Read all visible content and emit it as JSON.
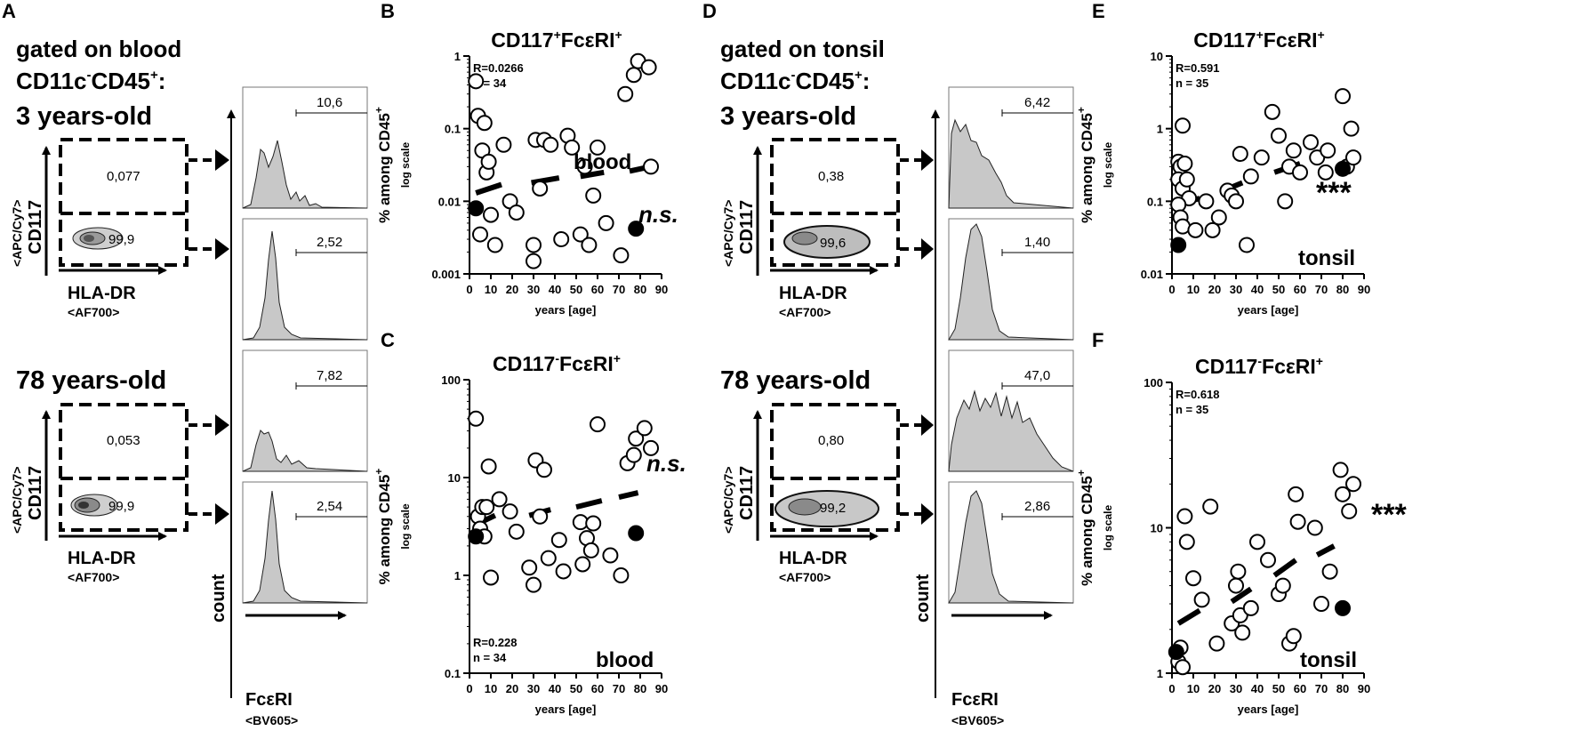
{
  "panels": {
    "A": {
      "letter": "A",
      "gate_line1": "gated on blood",
      "gate_line2_a": "CD11c",
      "gate_line2_sup1": "-",
      "gate_line2_b": "CD45",
      "gate_line2_sup2": "+",
      "gate_line2_c": ":",
      "young_label": "3 years-old",
      "old_label": "78 years-old",
      "young_gates": [
        "0,077",
        "99,9"
      ],
      "old_gates": [
        "0,053",
        "99,9"
      ],
      "hist_values": [
        "10,6",
        "2,52",
        "7,82",
        "2,54"
      ]
    },
    "D": {
      "letter": "D",
      "gate_line1": "gated on tonsil",
      "gate_line2_a": "CD11c",
      "gate_line2_sup1": "-",
      "gate_line2_b": "CD45",
      "gate_line2_sup2": "+",
      "gate_line2_c": ":",
      "young_label": "3 years-old",
      "old_label": "78 years-old",
      "young_gates": [
        "0,38",
        "99,6"
      ],
      "old_gates": [
        "0,80",
        "99,2"
      ],
      "hist_values": [
        "6,42",
        "1,40",
        "47,0",
        "2,86"
      ]
    }
  },
  "flow_labels": {
    "y_marker": "CD117",
    "y_fluor": "<APC/Cy7>",
    "x_marker": "HLA-DR",
    "x_fluor": "<AF700>",
    "count": "count",
    "hist_x_marker": "FcεRI",
    "hist_x_fluor": "<BV605>"
  },
  "chart_data": [
    {
      "panel": "B",
      "type": "scatter",
      "title_a": "CD117",
      "title_sup1": "+",
      "title_b": "FcεRI",
      "title_sup2": "+",
      "ylabel_a": "% among CD45",
      "ylabel_sup": "+",
      "ylabel_sub": "log scale",
      "xlabel": "years [age]",
      "xlim": [
        0,
        90
      ],
      "ylim": [
        0.001,
        1
      ],
      "yscale": "log",
      "y_ticks": [
        0.001,
        0.01,
        0.1,
        1
      ],
      "y_tick_labels": [
        "0.001",
        "0.01",
        "0.1",
        "1"
      ],
      "x_ticks": [
        0,
        10,
        20,
        30,
        40,
        50,
        60,
        70,
        80,
        90
      ],
      "x_tick_labels": [
        "0",
        "10",
        "20",
        "30",
        "40",
        "50",
        "60",
        "70",
        "80",
        "90"
      ],
      "stat_r": "R=0.0266",
      "stat_n": "n = 34",
      "stat_pos": "top-left",
      "tissue": "blood",
      "significance": "n.s.",
      "points": [
        [
          3,
          0.45
        ],
        [
          4,
          0.15
        ],
        [
          6,
          0.05
        ],
        [
          7,
          0.12
        ],
        [
          8,
          0.025
        ],
        [
          9,
          0.035
        ],
        [
          10,
          0.0065
        ],
        [
          5,
          0.0035
        ],
        [
          12,
          0.0025
        ],
        [
          16,
          0.06
        ],
        [
          19,
          0.01
        ],
        [
          22,
          0.007
        ],
        [
          30,
          0.0025
        ],
        [
          30,
          0.0015
        ],
        [
          31,
          0.07
        ],
        [
          33,
          0.015
        ],
        [
          35,
          0.07
        ],
        [
          38,
          0.06
        ],
        [
          43,
          0.003
        ],
        [
          46,
          0.08
        ],
        [
          48,
          0.055
        ],
        [
          52,
          0.0035
        ],
        [
          54,
          0.03
        ],
        [
          56,
          0.0025
        ],
        [
          58,
          0.012
        ],
        [
          60,
          0.055
        ],
        [
          64,
          0.005
        ],
        [
          71,
          0.0018
        ],
        [
          73,
          0.3
        ],
        [
          77,
          0.55
        ],
        [
          79,
          0.85
        ],
        [
          84,
          0.7
        ],
        [
          85,
          0.03
        ]
      ],
      "filled_points": [
        [
          3,
          0.008
        ],
        [
          78,
          0.0042
        ]
      ],
      "trend_segments": [
        [
          [
            3,
            0.013
          ],
          [
            15,
            0.017
          ]
        ],
        [
          [
            29,
            0.018
          ],
          [
            42,
            0.021
          ]
        ],
        [
          [
            52,
            0.022
          ],
          [
            63,
            0.025
          ]
        ],
        [
          [
            75,
            0.026
          ],
          [
            85,
            0.03
          ]
        ]
      ]
    },
    {
      "panel": "C",
      "type": "scatter",
      "title_a": "CD117",
      "title_sup1": "-",
      "title_b": "FcεRI",
      "title_sup2": "+",
      "ylabel_a": "% among CD45",
      "ylabel_sup": "+",
      "ylabel_sub": "log scale",
      "xlabel": "years [age]",
      "xlim": [
        0,
        90
      ],
      "ylim": [
        0.1,
        100
      ],
      "yscale": "log",
      "y_ticks": [
        0.1,
        1,
        10,
        100
      ],
      "y_tick_labels": [
        "0.1",
        "1",
        "10",
        "100"
      ],
      "x_ticks": [
        0,
        10,
        20,
        30,
        40,
        50,
        60,
        70,
        80,
        90
      ],
      "x_tick_labels": [
        "0",
        "10",
        "20",
        "30",
        "40",
        "50",
        "60",
        "70",
        "80",
        "90"
      ],
      "stat_r": "R=0.228",
      "stat_n": "n = 34",
      "stat_pos": "bottom-left",
      "tissue": "blood",
      "significance": "n.s.",
      "points": [
        [
          3,
          40
        ],
        [
          4,
          4
        ],
        [
          5,
          3
        ],
        [
          6,
          5
        ],
        [
          7,
          2.5
        ],
        [
          8,
          5
        ],
        [
          9,
          13
        ],
        [
          10,
          0.95
        ],
        [
          14,
          6
        ],
        [
          19,
          4.5
        ],
        [
          22,
          2.8
        ],
        [
          28,
          1.2
        ],
        [
          30,
          0.8
        ],
        [
          31,
          15
        ],
        [
          33,
          4
        ],
        [
          35,
          12
        ],
        [
          37,
          1.5
        ],
        [
          42,
          2.3
        ],
        [
          44,
          1.1
        ],
        [
          52,
          3.5
        ],
        [
          53,
          1.3
        ],
        [
          55,
          2.4
        ],
        [
          57,
          1.8
        ],
        [
          58,
          3.4
        ],
        [
          60,
          35
        ],
        [
          66,
          1.6
        ],
        [
          71,
          1
        ],
        [
          74,
          14
        ],
        [
          77,
          17
        ],
        [
          78,
          25
        ],
        [
          82,
          32
        ],
        [
          85,
          20
        ]
      ],
      "filled_points": [
        [
          3,
          2.5
        ],
        [
          78,
          2.7
        ]
      ],
      "trend_segments": [
        [
          [
            3,
            3.3
          ],
          [
            12,
            4.1
          ]
        ],
        [
          [
            28,
            4.1
          ],
          [
            38,
            4.7
          ]
        ],
        [
          [
            50,
            5
          ],
          [
            62,
            5.8
          ]
        ],
        [
          [
            70,
            6.3
          ],
          [
            79,
            7
          ]
        ]
      ]
    },
    {
      "panel": "E",
      "type": "scatter",
      "title_a": "CD117",
      "title_sup1": "+",
      "title_b": "FcεRI",
      "title_sup2": "+",
      "ylabel_a": "% among CD45",
      "ylabel_sup": "+",
      "ylabel_sub": "log scale",
      "xlabel": "years [age]",
      "xlim": [
        0,
        90
      ],
      "ylim": [
        0.01,
        10
      ],
      "yscale": "log",
      "y_ticks": [
        0.01,
        0.1,
        1,
        10
      ],
      "y_tick_labels": [
        "0.01",
        "0.1",
        "1",
        "10"
      ],
      "x_ticks": [
        0,
        10,
        20,
        30,
        40,
        50,
        60,
        70,
        80,
        90
      ],
      "x_tick_labels": [
        "0",
        "10",
        "20",
        "30",
        "40",
        "50",
        "60",
        "70",
        "80",
        "90"
      ],
      "stat_r": "R=0.591",
      "stat_n": "n = 35",
      "stat_pos": "top-left",
      "tissue": "tonsil",
      "significance": "***",
      "points": [
        [
          3,
          0.35
        ],
        [
          4,
          0.3
        ],
        [
          5,
          1.1
        ],
        [
          3,
          0.2
        ],
        [
          5,
          0.15
        ],
        [
          6,
          0.33
        ],
        [
          7,
          0.2
        ],
        [
          8,
          0.11
        ],
        [
          3,
          0.09
        ],
        [
          4,
          0.06
        ],
        [
          5,
          0.045
        ],
        [
          11,
          0.04
        ],
        [
          16,
          0.1
        ],
        [
          19,
          0.04
        ],
        [
          22,
          0.06
        ],
        [
          26,
          0.14
        ],
        [
          28,
          0.12
        ],
        [
          30,
          0.1
        ],
        [
          32,
          0.45
        ],
        [
          35,
          0.025
        ],
        [
          37,
          0.22
        ],
        [
          42,
          0.4
        ],
        [
          47,
          1.7
        ],
        [
          50,
          0.8
        ],
        [
          53,
          0.1
        ],
        [
          55,
          0.3
        ],
        [
          57,
          0.5
        ],
        [
          60,
          0.25
        ],
        [
          65,
          0.65
        ],
        [
          68,
          0.4
        ],
        [
          72,
          0.25
        ],
        [
          73,
          0.5
        ],
        [
          80,
          2.8
        ],
        [
          82,
          0.3
        ],
        [
          84,
          1.0
        ],
        [
          85,
          0.4
        ]
      ],
      "filled_points": [
        [
          3,
          0.025
        ],
        [
          80,
          0.28
        ]
      ],
      "trend_segments": [
        [
          [
            3,
            0.09
          ],
          [
            13,
            0.11
          ]
        ],
        [
          [
            24,
            0.14
          ],
          [
            33,
            0.18
          ]
        ],
        [
          [
            48,
            0.25
          ],
          [
            60,
            0.33
          ]
        ],
        [
          [
            69,
            0.4
          ],
          [
            76,
            0.5
          ]
        ]
      ]
    },
    {
      "panel": "F",
      "type": "scatter",
      "title_a": "CD117",
      "title_sup1": "-",
      "title_b": "FcεRI",
      "title_sup2": "+",
      "ylabel_a": "% among CD45",
      "ylabel_sup": "+",
      "ylabel_sub": "log scale",
      "xlabel": "years [age]",
      "xlim": [
        0,
        90
      ],
      "ylim": [
        1,
        100
      ],
      "yscale": "log",
      "y_ticks": [
        1,
        10,
        100
      ],
      "y_tick_labels": [
        "1",
        "10",
        "100"
      ],
      "x_ticks": [
        0,
        10,
        20,
        30,
        40,
        50,
        60,
        70,
        80,
        90
      ],
      "x_tick_labels": [
        "0",
        "10",
        "20",
        "30",
        "40",
        "50",
        "60",
        "70",
        "80",
        "90"
      ],
      "stat_r": "R=0.618",
      "stat_n": "n = 35",
      "stat_pos": "top-left",
      "tissue": "tonsil",
      "significance": "***",
      "points": [
        [
          3,
          1.2
        ],
        [
          4,
          1.5
        ],
        [
          5,
          1.1
        ],
        [
          6,
          12
        ],
        [
          7,
          8
        ],
        [
          10,
          4.5
        ],
        [
          14,
          3.2
        ],
        [
          18,
          14
        ],
        [
          21,
          1.6
        ],
        [
          28,
          2.2
        ],
        [
          30,
          4
        ],
        [
          31,
          5
        ],
        [
          32,
          2.5
        ],
        [
          33,
          1.9
        ],
        [
          37,
          2.8
        ],
        [
          40,
          8
        ],
        [
          45,
          6
        ],
        [
          50,
          3.5
        ],
        [
          52,
          4
        ],
        [
          55,
          1.6
        ],
        [
          57,
          1.8
        ],
        [
          58,
          17
        ],
        [
          59,
          11
        ],
        [
          67,
          10
        ],
        [
          70,
          3
        ],
        [
          74,
          5
        ],
        [
          79,
          25
        ],
        [
          80,
          17
        ],
        [
          83,
          13
        ],
        [
          85,
          20
        ]
      ],
      "filled_points": [
        [
          2,
          1.4
        ],
        [
          80,
          2.8
        ]
      ],
      "trend_segments": [
        [
          [
            3,
            2.2
          ],
          [
            13,
            2.7
          ]
        ],
        [
          [
            28,
            3.1
          ],
          [
            37,
            3.8
          ]
        ],
        [
          [
            48,
            4.7
          ],
          [
            58,
            6
          ]
        ],
        [
          [
            68,
            6.5
          ],
          [
            76,
            7.5
          ]
        ]
      ]
    }
  ]
}
